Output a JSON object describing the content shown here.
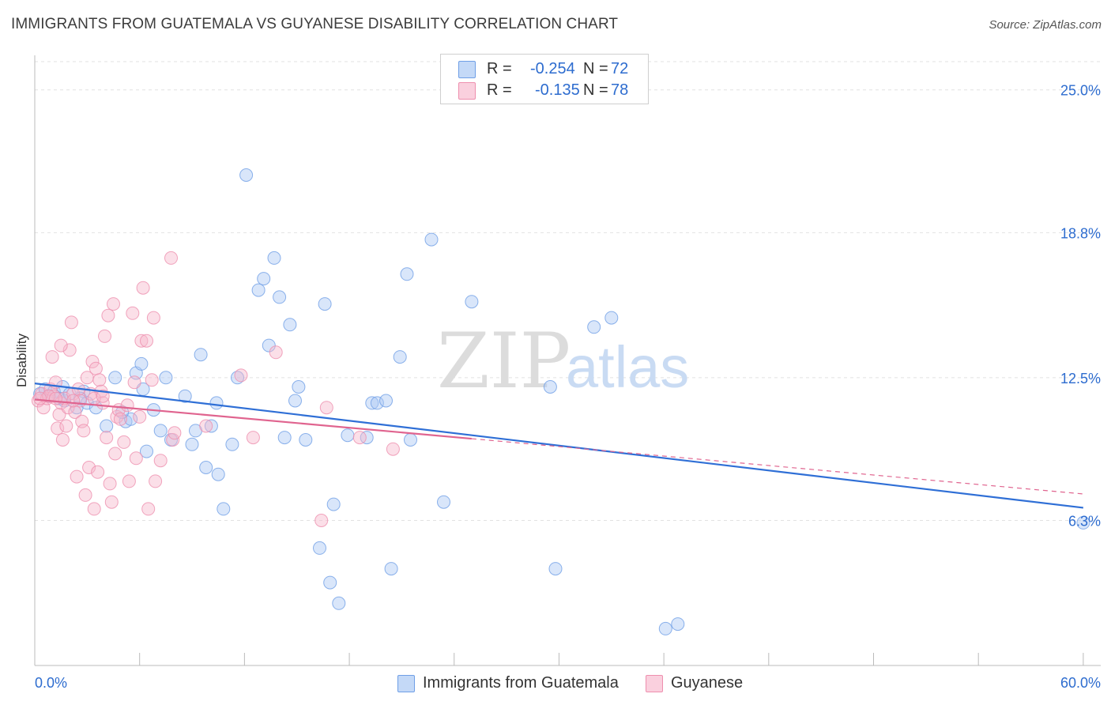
{
  "title": "IMMIGRANTS FROM GUATEMALA VS GUYANESE DISABILITY CORRELATION CHART",
  "source": "Source: ZipAtlas.com",
  "watermark": {
    "zip": "ZIP",
    "atlas": "atlas"
  },
  "legend": {
    "rows": [
      {
        "label": "R =",
        "r_value": "-0.254",
        "n_label": "N =",
        "n_value": "72",
        "color": "#aac8f3"
      },
      {
        "label": "R =",
        "r_value": "-0.135",
        "n_label": "N =",
        "n_value": "78",
        "color": "#f6b7cb"
      }
    ]
  },
  "bottom_legend": [
    {
      "label": "Immigrants from Guatemala",
      "color": "#aac8f3"
    },
    {
      "label": "Guyanese",
      "color": "#f6b7cb"
    }
  ],
  "chart_data": {
    "type": "scatter",
    "title": "IMMIGRANTS FROM GUATEMALA VS GUYANESE DISABILITY CORRELATION CHART",
    "xlabel": "",
    "ylabel": "Disability",
    "xlim": [
      0,
      60
    ],
    "ylim": [
      0,
      26.5
    ],
    "x_tick_labels": [
      "0.0%",
      "60.0%"
    ],
    "y_ticks": [
      6.3,
      12.5,
      18.8,
      25.0
    ],
    "y_tick_labels": [
      "6.3%",
      "12.5%",
      "18.8%",
      "25.0%"
    ],
    "grid": true,
    "legend_position": "top-center",
    "series": [
      {
        "name": "Immigrants from Guatemala",
        "color": "#6f9fe6",
        "fill": "#aac8f3",
        "trend": {
          "x": [
            0,
            60
          ],
          "y": [
            12.25,
            6.85
          ],
          "color": "#2f6fd6"
        },
        "points": [
          [
            0.3,
            11.8
          ],
          [
            0.6,
            12.0
          ],
          [
            0.8,
            11.7
          ],
          [
            1.1,
            11.9
          ],
          [
            1.4,
            11.6
          ],
          [
            1.7,
            11.5
          ],
          [
            1.6,
            12.1
          ],
          [
            2.0,
            11.8
          ],
          [
            2.4,
            11.2
          ],
          [
            2.8,
            11.9
          ],
          [
            3.0,
            11.4
          ],
          [
            3.5,
            11.2
          ],
          [
            4.1,
            10.4
          ],
          [
            4.6,
            12.5
          ],
          [
            5.2,
            10.6
          ],
          [
            5.5,
            10.7
          ],
          [
            5.8,
            12.7
          ],
          [
            6.1,
            13.1
          ],
          [
            6.2,
            12.0
          ],
          [
            6.4,
            9.3
          ],
          [
            6.8,
            11.1
          ],
          [
            7.2,
            10.2
          ],
          [
            7.5,
            12.5
          ],
          [
            7.8,
            9.8
          ],
          [
            8.6,
            11.7
          ],
          [
            9.0,
            9.6
          ],
          [
            9.2,
            10.2
          ],
          [
            9.5,
            13.5
          ],
          [
            9.8,
            8.6
          ],
          [
            10.1,
            10.4
          ],
          [
            10.4,
            11.4
          ],
          [
            10.5,
            8.3
          ],
          [
            10.8,
            6.8
          ],
          [
            11.3,
            9.6
          ],
          [
            11.6,
            12.5
          ],
          [
            12.1,
            21.3
          ],
          [
            12.8,
            16.3
          ],
          [
            13.1,
            16.8
          ],
          [
            13.4,
            13.9
          ],
          [
            13.7,
            17.7
          ],
          [
            14.0,
            16.0
          ],
          [
            14.3,
            9.9
          ],
          [
            14.6,
            14.8
          ],
          [
            14.9,
            11.5
          ],
          [
            15.1,
            12.1
          ],
          [
            15.5,
            9.8
          ],
          [
            16.3,
            5.1
          ],
          [
            16.6,
            15.7
          ],
          [
            16.9,
            3.6
          ],
          [
            17.1,
            7.0
          ],
          [
            17.4,
            2.7
          ],
          [
            17.9,
            10.0
          ],
          [
            19.0,
            9.9
          ],
          [
            19.3,
            11.4
          ],
          [
            19.6,
            11.4
          ],
          [
            20.1,
            11.5
          ],
          [
            20.4,
            4.2
          ],
          [
            20.9,
            13.4
          ],
          [
            21.3,
            17.0
          ],
          [
            21.5,
            9.8
          ],
          [
            22.7,
            18.5
          ],
          [
            23.4,
            7.1
          ],
          [
            25.0,
            15.8
          ],
          [
            29.5,
            12.1
          ],
          [
            29.8,
            4.2
          ],
          [
            32.0,
            14.7
          ],
          [
            33.0,
            15.1
          ],
          [
            36.1,
            1.6
          ],
          [
            36.8,
            1.8
          ],
          [
            60.0,
            6.2
          ],
          [
            2.6,
            11.6
          ],
          [
            5.0,
            11.0
          ]
        ]
      },
      {
        "name": "Guyanese",
        "color": "#ee8fae",
        "fill": "#f6b7cb",
        "trend": {
          "x": [
            0,
            25
          ],
          "y": [
            11.55,
            9.85
          ],
          "color": "#e0648f",
          "dash_x": [
            25,
            60
          ],
          "dash_y": [
            9.85,
            7.45
          ]
        },
        "points": [
          [
            0.2,
            11.5
          ],
          [
            0.4,
            11.8
          ],
          [
            0.5,
            11.2
          ],
          [
            0.7,
            11.6
          ],
          [
            0.9,
            12.0
          ],
          [
            1.0,
            13.4
          ],
          [
            1.1,
            11.7
          ],
          [
            1.2,
            12.3
          ],
          [
            1.3,
            10.3
          ],
          [
            1.4,
            10.9
          ],
          [
            1.5,
            11.4
          ],
          [
            1.6,
            9.8
          ],
          [
            1.7,
            11.6
          ],
          [
            1.8,
            10.4
          ],
          [
            1.9,
            11.2
          ],
          [
            2.0,
            13.7
          ],
          [
            2.1,
            14.9
          ],
          [
            2.2,
            11.8
          ],
          [
            2.3,
            11.0
          ],
          [
            2.4,
            8.2
          ],
          [
            2.5,
            12.0
          ],
          [
            2.6,
            11.5
          ],
          [
            2.7,
            10.6
          ],
          [
            2.8,
            10.2
          ],
          [
            2.9,
            7.4
          ],
          [
            3.0,
            12.5
          ],
          [
            3.1,
            8.6
          ],
          [
            3.2,
            11.8
          ],
          [
            3.3,
            13.2
          ],
          [
            3.4,
            6.8
          ],
          [
            3.5,
            12.9
          ],
          [
            3.6,
            8.4
          ],
          [
            3.7,
            12.4
          ],
          [
            3.8,
            11.9
          ],
          [
            3.9,
            11.4
          ],
          [
            4.0,
            14.3
          ],
          [
            4.1,
            9.9
          ],
          [
            4.2,
            15.2
          ],
          [
            4.3,
            7.9
          ],
          [
            4.4,
            7.1
          ],
          [
            4.5,
            15.7
          ],
          [
            4.6,
            9.2
          ],
          [
            4.7,
            10.8
          ],
          [
            4.8,
            11.1
          ],
          [
            4.9,
            10.7
          ],
          [
            5.1,
            9.7
          ],
          [
            5.3,
            11.3
          ],
          [
            5.4,
            8.0
          ],
          [
            5.6,
            15.3
          ],
          [
            5.7,
            12.3
          ],
          [
            5.8,
            9.0
          ],
          [
            6.0,
            10.8
          ],
          [
            6.1,
            14.1
          ],
          [
            6.2,
            16.4
          ],
          [
            6.4,
            14.1
          ],
          [
            6.5,
            6.8
          ],
          [
            6.7,
            12.4
          ],
          [
            6.8,
            15.1
          ],
          [
            6.9,
            8.0
          ],
          [
            7.2,
            8.9
          ],
          [
            7.8,
            17.7
          ],
          [
            7.9,
            9.8
          ],
          [
            8.0,
            10.1
          ],
          [
            9.8,
            10.4
          ],
          [
            11.8,
            12.6
          ],
          [
            12.5,
            9.9
          ],
          [
            13.8,
            13.6
          ],
          [
            16.4,
            6.3
          ],
          [
            16.7,
            11.2
          ],
          [
            18.6,
            9.9
          ],
          [
            20.5,
            9.4
          ],
          [
            0.8,
            11.7
          ],
          [
            1.2,
            11.6
          ],
          [
            2.2,
            11.5
          ],
          [
            3.4,
            11.6
          ],
          [
            0.3,
            11.6
          ],
          [
            1.5,
            13.9
          ],
          [
            3.9,
            11.7
          ]
        ]
      }
    ]
  }
}
